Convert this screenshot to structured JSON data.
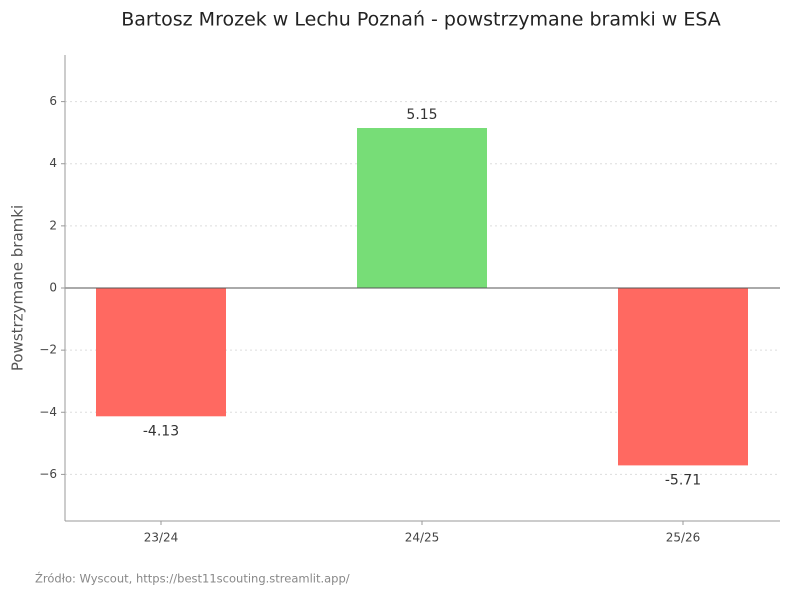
{
  "chart_data": {
    "type": "bar",
    "title": "Bartosz Mrozek w Lechu Poznań - powstrzymane bramki w ESA",
    "y_label": "Powstrzymane bramki",
    "source": "Źródło: Wyscout, https://best11scouting.streamlit.app/",
    "categories": [
      "23/24",
      "24/25",
      "25/26"
    ],
    "values": [
      -4.13,
      5.15,
      -5.71
    ],
    "colors": [
      "#ff6961",
      "#77dd77",
      "#ff6961"
    ],
    "ylim": [
      -7.5,
      7.5
    ],
    "yticks": [
      {
        "value": -6,
        "label": "−6"
      },
      {
        "value": -4,
        "label": "−4"
      },
      {
        "value": -2,
        "label": "−2"
      },
      0,
      2,
      4,
      6
    ],
    "grid": true
  }
}
